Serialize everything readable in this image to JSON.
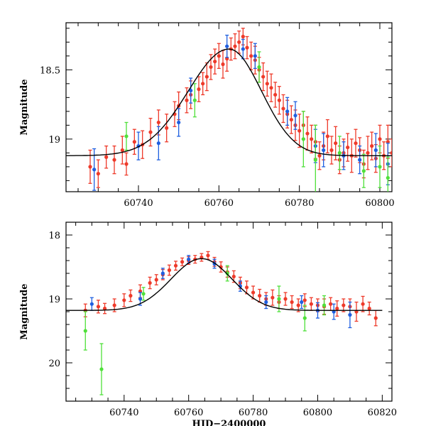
{
  "colors": {
    "red": "#ee3a2a",
    "blue": "#1f5fe0",
    "green": "#4fe03a",
    "model": "#000000"
  },
  "chart_data": [
    {
      "type": "scatter",
      "title": "",
      "xlabel": "",
      "ylabel": "Magnitude",
      "xlim": [
        60722,
        60803
      ],
      "ylim": [
        19.38,
        18.16
      ],
      "y_inverted": true,
      "xticks": [
        60740,
        60760,
        60780,
        60800
      ],
      "yticks": [
        18.5,
        19
      ],
      "ytick_labels": [
        "18.5",
        "19"
      ],
      "series": [
        {
          "color": "red",
          "points": [
            [
              60728,
              19.2,
              0.12
            ],
            [
              60730,
              19.25,
              0.1
            ],
            [
              60732,
              19.13,
              0.08
            ],
            [
              60734,
              19.15,
              0.1
            ],
            [
              60736,
              19.08,
              0.1
            ],
            [
              60737,
              19.18,
              0.08
            ],
            [
              60739,
              19.02,
              0.09
            ],
            [
              60741,
              19.04,
              0.1
            ],
            [
              60743,
              18.95,
              0.1
            ],
            [
              60745,
              18.88,
              0.09
            ],
            [
              60747,
              18.92,
              0.1
            ],
            [
              60749,
              18.82,
              0.09
            ],
            [
              60750,
              18.76,
              0.1
            ],
            [
              60752,
              18.72,
              0.09
            ],
            [
              60753,
              18.68,
              0.1
            ],
            [
              60755,
              18.64,
              0.09
            ],
            [
              60756,
              18.6,
              0.08
            ],
            [
              60757,
              18.55,
              0.1
            ],
            [
              60758,
              18.48,
              0.09
            ],
            [
              60759,
              18.44,
              0.09
            ],
            [
              60760,
              18.4,
              0.09
            ],
            [
              60761,
              18.46,
              0.1
            ],
            [
              60762,
              18.42,
              0.09
            ],
            [
              60763,
              18.35,
              0.08
            ],
            [
              60764,
              18.33,
              0.09
            ],
            [
              60765,
              18.3,
              0.08
            ],
            [
              60766,
              18.26,
              0.06
            ],
            [
              60767,
              18.34,
              0.08
            ],
            [
              60768,
              18.4,
              0.1
            ],
            [
              60769,
              18.43,
              0.1
            ],
            [
              60770,
              18.5,
              0.09
            ],
            [
              60771,
              18.55,
              0.1
            ],
            [
              60772,
              18.6,
              0.09
            ],
            [
              60773,
              18.63,
              0.1
            ],
            [
              60774,
              18.68,
              0.09
            ],
            [
              60775,
              18.72,
              0.1
            ],
            [
              60776,
              18.78,
              0.1
            ],
            [
              60777,
              18.82,
              0.1
            ],
            [
              60778,
              18.86,
              0.1
            ],
            [
              60779,
              18.9,
              0.11
            ],
            [
              60780,
              18.94,
              0.12
            ],
            [
              60781,
              18.9,
              0.1
            ],
            [
              60782,
              18.96,
              0.12
            ],
            [
              60783,
              19.0,
              0.1
            ],
            [
              60784,
              19.02,
              0.12
            ],
            [
              60785,
              19.12,
              0.1
            ],
            [
              60786,
              19.05,
              0.1
            ],
            [
              60787,
              18.98,
              0.12
            ],
            [
              60788,
              19.08,
              0.1
            ],
            [
              60789,
              19.03,
              0.12
            ],
            [
              60790,
              19.15,
              0.1
            ],
            [
              60791,
              19.1,
              0.1
            ],
            [
              60792,
              19.06,
              0.1
            ],
            [
              60793,
              19.12,
              0.12
            ],
            [
              60794,
              19.03,
              0.1
            ],
            [
              60795,
              19.08,
              0.09
            ],
            [
              60796,
              19.18,
              0.1
            ],
            [
              60797,
              19.1,
              0.12
            ],
            [
              60798,
              19.05,
              0.1
            ],
            [
              60799,
              19.14,
              0.1
            ],
            [
              60800,
              19.0,
              0.1
            ],
            [
              60801,
              19.12,
              0.1
            ],
            [
              60802,
              19.02,
              0.12
            ],
            [
              60803,
              19.1,
              0.1
            ]
          ]
        },
        {
          "color": "blue",
          "points": [
            [
              60729,
              19.22,
              0.15
            ],
            [
              60740,
              19.05,
              0.1
            ],
            [
              60745,
              19.03,
              0.12
            ],
            [
              60750,
              18.88,
              0.1
            ],
            [
              60753,
              18.65,
              0.09
            ],
            [
              60762,
              18.33,
              0.08
            ],
            [
              60766,
              18.35,
              0.07
            ],
            [
              60769,
              18.4,
              0.09
            ],
            [
              60777,
              18.8,
              0.1
            ],
            [
              60779,
              18.83,
              0.1
            ],
            [
              60784,
              19.05,
              0.12
            ],
            [
              60786,
              19.08,
              0.12
            ],
            [
              60791,
              19.12,
              0.1
            ],
            [
              60795,
              19.15,
              0.1
            ],
            [
              60799,
              19.08,
              0.12
            ],
            [
              60802,
              19.18,
              0.15
            ]
          ]
        },
        {
          "color": "green",
          "points": [
            [
              60737,
              18.98,
              0.1
            ],
            [
              60754,
              18.72,
              0.12
            ],
            [
              60770,
              18.48,
              0.11
            ],
            [
              60781,
              19.0,
              0.2
            ],
            [
              60784,
              19.15,
              0.25
            ],
            [
              60790,
              19.1,
              0.12
            ],
            [
              60796,
              19.23,
              0.12
            ],
            [
              60800,
              19.2,
              0.15
            ],
            [
              60802,
              19.28,
              0.15
            ]
          ]
        }
      ],
      "model": {
        "baseline": 19.12,
        "peak": 18.35,
        "t0": 60762.5,
        "width_left": 15,
        "width_right": 12,
        "xmax": 60803
      }
    },
    {
      "type": "scatter",
      "title": "",
      "xlabel": "HJD−2400000",
      "ylabel": "Magnitude",
      "xlim": [
        60722,
        60823
      ],
      "ylim": [
        20.6,
        17.8
      ],
      "y_inverted": true,
      "xticks": [
        60740,
        60760,
        60780,
        60800,
        60820
      ],
      "yticks": [
        18,
        19,
        20
      ],
      "ytick_labels": [
        "18",
        "19",
        "20"
      ],
      "series": [
        {
          "color": "red",
          "points": [
            [
              60728,
              19.18,
              0.1
            ],
            [
              60732,
              19.12,
              0.1
            ],
            [
              60734,
              19.15,
              0.08
            ],
            [
              60737,
              19.1,
              0.1
            ],
            [
              60740,
              19.02,
              0.1
            ],
            [
              60742,
              18.95,
              0.09
            ],
            [
              60745,
              18.88,
              0.1
            ],
            [
              60748,
              18.75,
              0.09
            ],
            [
              60750,
              18.7,
              0.08
            ],
            [
              60752,
              18.62,
              0.08
            ],
            [
              60754,
              18.55,
              0.08
            ],
            [
              60756,
              18.48,
              0.07
            ],
            [
              60758,
              18.42,
              0.06
            ],
            [
              60760,
              18.4,
              0.06
            ],
            [
              60762,
              18.38,
              0.06
            ],
            [
              60764,
              18.35,
              0.06
            ],
            [
              60766,
              18.32,
              0.06
            ],
            [
              60768,
              18.42,
              0.07
            ],
            [
              60770,
              18.5,
              0.08
            ],
            [
              60772,
              18.58,
              0.08
            ],
            [
              60774,
              18.65,
              0.09
            ],
            [
              60776,
              18.75,
              0.09
            ],
            [
              60778,
              18.82,
              0.1
            ],
            [
              60780,
              18.9,
              0.1
            ],
            [
              60782,
              18.95,
              0.1
            ],
            [
              60784,
              19.0,
              0.1
            ],
            [
              60786,
              18.98,
              0.12
            ],
            [
              60788,
              19.05,
              0.1
            ],
            [
              60790,
              19.0,
              0.1
            ],
            [
              60792,
              19.05,
              0.1
            ],
            [
              60794,
              19.1,
              0.1
            ],
            [
              60796,
              19.02,
              0.1
            ],
            [
              60798,
              19.08,
              0.1
            ],
            [
              60800,
              19.1,
              0.1
            ],
            [
              60802,
              19.12,
              0.12
            ],
            [
              60804,
              19.08,
              0.1
            ],
            [
              60806,
              19.15,
              0.12
            ],
            [
              60808,
              19.1,
              0.1
            ],
            [
              60810,
              19.12,
              0.12
            ],
            [
              60812,
              19.2,
              0.15
            ],
            [
              60814,
              19.08,
              0.12
            ],
            [
              60816,
              19.15,
              0.1
            ],
            [
              60818,
              19.3,
              0.12
            ]
          ]
        },
        {
          "color": "blue",
          "points": [
            [
              60730,
              19.08,
              0.1
            ],
            [
              60745,
              19.0,
              0.1
            ],
            [
              60752,
              18.6,
              0.08
            ],
            [
              60760,
              18.38,
              0.06
            ],
            [
              60768,
              18.45,
              0.07
            ],
            [
              60776,
              18.8,
              0.08
            ],
            [
              60784,
              19.05,
              0.1
            ],
            [
              60795,
              19.05,
              0.1
            ],
            [
              60800,
              19.18,
              0.12
            ],
            [
              60805,
              19.2,
              0.12
            ],
            [
              60810,
              19.25,
              0.2
            ]
          ]
        },
        {
          "color": "green",
          "points": [
            [
              60728,
              19.5,
              0.3
            ],
            [
              60733,
              20.1,
              0.4
            ],
            [
              60746,
              18.92,
              0.1
            ],
            [
              60772,
              18.6,
              0.12
            ],
            [
              60788,
              19.0,
              0.2
            ],
            [
              60796,
              19.3,
              0.2
            ],
            [
              60802,
              19.1,
              0.15
            ]
          ]
        }
      ],
      "model": {
        "baseline": 19.18,
        "peak": 18.37,
        "t0": 60764,
        "width_left": 14,
        "width_right": 14,
        "xmax": 60820
      }
    }
  ]
}
